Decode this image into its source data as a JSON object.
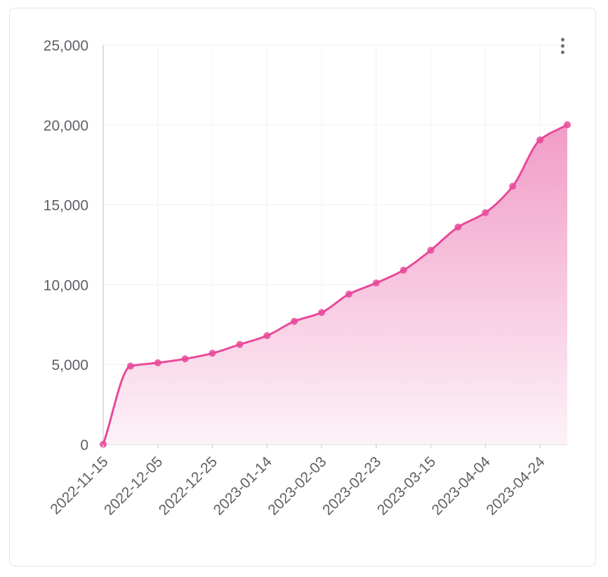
{
  "colors": {
    "line": "#e8499a",
    "fill_top": "#f19cc6",
    "fill_bottom": "#fdf2f8",
    "grid": "#f1f1f3",
    "axis": "#d4d4d8",
    "text": "#5f5f66"
  },
  "menu": {
    "icon": "more-vertical-icon"
  },
  "chart_data": {
    "type": "area",
    "title": "",
    "xlabel": "",
    "ylabel": "",
    "x": [
      "2022-11-15",
      "2022-11-25",
      "2022-12-05",
      "2022-12-15",
      "2022-12-25",
      "2023-01-04",
      "2023-01-14",
      "2023-01-24",
      "2023-02-03",
      "2023-02-13",
      "2023-02-23",
      "2023-03-05",
      "2023-03-15",
      "2023-03-25",
      "2023-04-04",
      "2023-04-14",
      "2023-04-24",
      "2023-05-04"
    ],
    "series": [
      {
        "values": [
          0,
          4900,
          5100,
          5350,
          5700,
          6250,
          6800,
          7700,
          8250,
          9400,
          10100,
          10900,
          12150,
          13600,
          14500,
          16150,
          19050,
          20000
        ]
      }
    ],
    "ylim": [
      0,
      25000
    ],
    "y_ticks": [
      0,
      5000,
      10000,
      15000,
      20000,
      25000
    ],
    "y_tick_labels": [
      "0",
      "5,000",
      "10,000",
      "15,000",
      "20,000",
      "25,000"
    ],
    "x_ticks": [
      "2022-11-15",
      "2022-12-05",
      "2022-12-25",
      "2023-01-14",
      "2023-02-03",
      "2023-02-23",
      "2023-03-15",
      "2023-04-04",
      "2023-04-24"
    ],
    "grid": true,
    "legend": "none",
    "smooth": true,
    "markers": true
  }
}
